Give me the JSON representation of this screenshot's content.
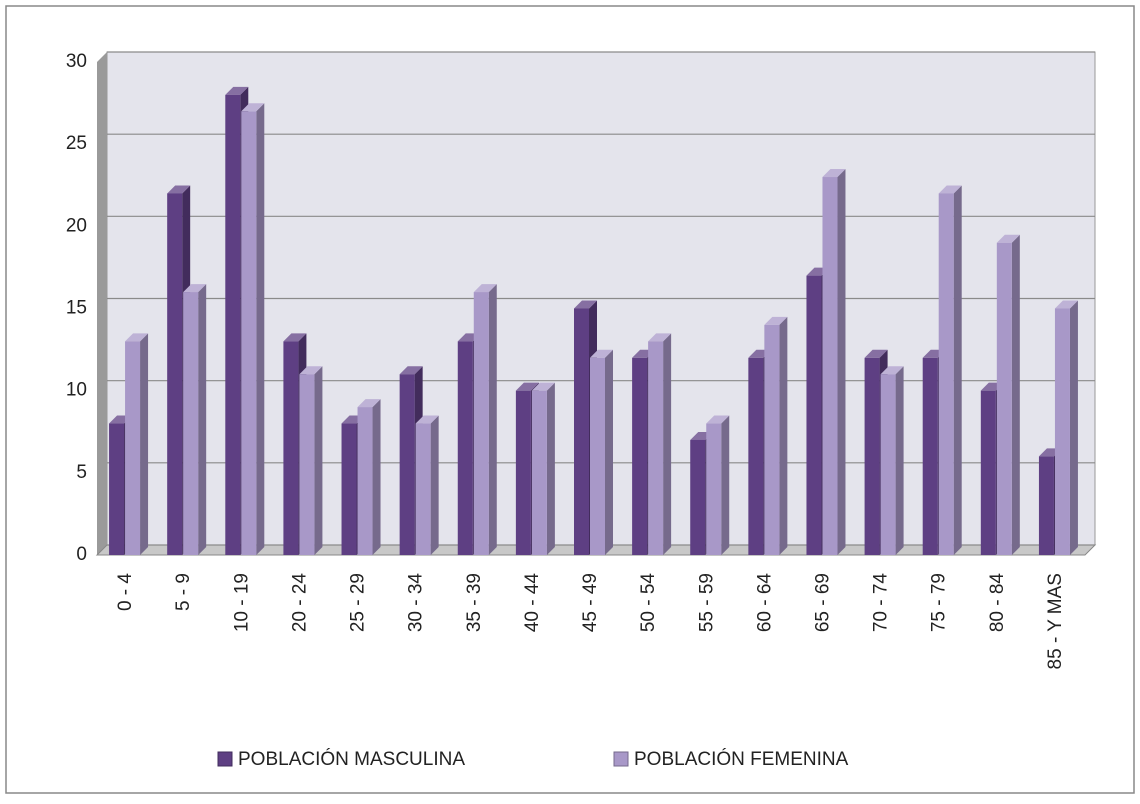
{
  "chart_data": {
    "type": "bar",
    "categories": [
      "0 - 4",
      "5 - 9",
      "10 - 19",
      "20 - 24",
      "25 - 29",
      "30 - 34",
      "35 - 39",
      "40 - 44",
      "45 - 49",
      "50 - 54",
      "55 - 59",
      "60 - 64",
      "65 - 69",
      "70 - 74",
      "75 - 79",
      "80 - 84",
      "85 - Y MAS"
    ],
    "series": [
      {
        "name": "POBLACIÓN MASCULINA",
        "color": "#5e3f83",
        "values": [
          8,
          22,
          28,
          13,
          8,
          11,
          13,
          10,
          15,
          12,
          7,
          12,
          17,
          12,
          12,
          10,
          6
        ]
      },
      {
        "name": "POBLACIÓN FEMENINA",
        "color": "#a898c8",
        "values": [
          13,
          16,
          27,
          11,
          9,
          8,
          16,
          10,
          12,
          13,
          8,
          14,
          23,
          11,
          22,
          19,
          15
        ]
      }
    ],
    "ylim": [
      0,
      30
    ],
    "yticks": [
      0,
      5,
      10,
      15,
      20,
      25,
      30
    ],
    "grid": true,
    "legend": "bottom"
  }
}
